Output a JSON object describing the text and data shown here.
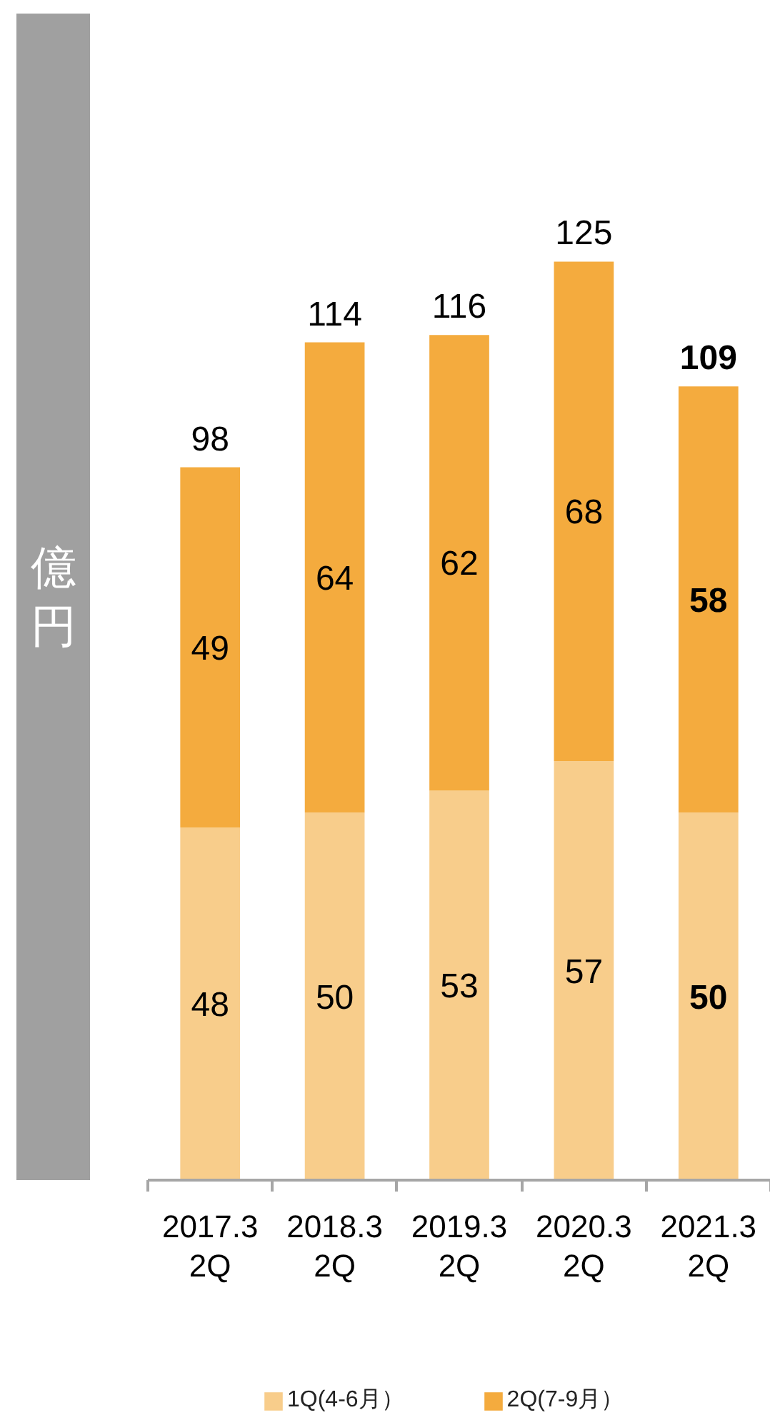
{
  "chart_data": {
    "type": "bar",
    "stacked": true,
    "ylabel": "億円",
    "categories": [
      "2017.3\n2Q",
      "2018.3\n2Q",
      "2019.3\n2Q",
      "2020.3\n2Q",
      "2021.3\n2Q"
    ],
    "series": [
      {
        "name": "1Q(4-6月）",
        "color": "#f8cd8b",
        "values": [
          48,
          50,
          53,
          57,
          50
        ]
      },
      {
        "name": "2Q(7-9月）",
        "color": "#f4ab3e",
        "values": [
          49,
          64,
          62,
          68,
          58
        ]
      }
    ],
    "data_labels": true,
    "totals": [
      "98",
      "114",
      "116",
      "125",
      "109"
    ],
    "legend": "bottom",
    "grid": false,
    "tick_labels": "x"
  }
}
